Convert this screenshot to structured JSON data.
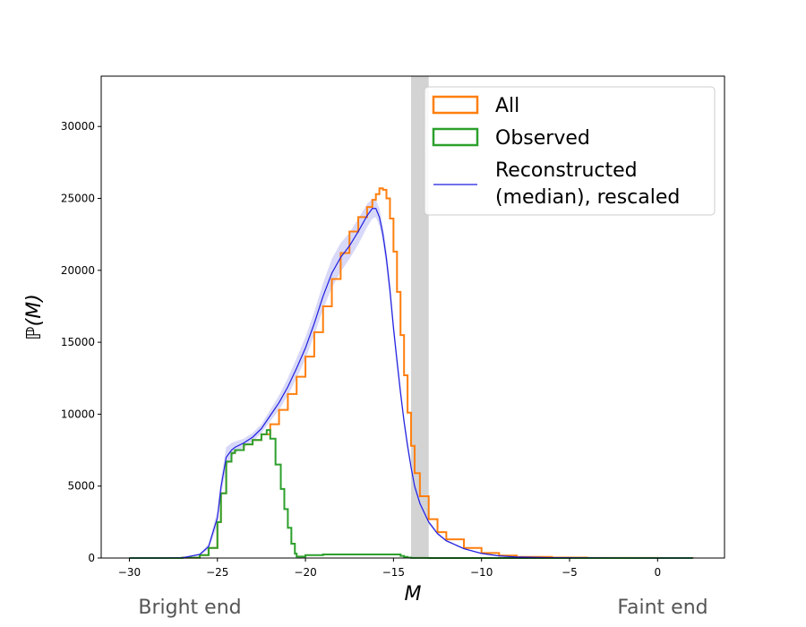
{
  "chart_data": {
    "type": "line",
    "xlabel": "M",
    "ylabel": "ℙ(M)",
    "xlim": [
      -31.6,
      3.8
    ],
    "ylim": [
      0,
      33500
    ],
    "xticks": [
      -30,
      -25,
      -20,
      -15,
      -10,
      -5,
      0
    ],
    "yticks": [
      0,
      5000,
      10000,
      15000,
      20000,
      25000,
      30000
    ],
    "shaded_region": {
      "x0": -14.0,
      "x1": -13.0,
      "color": "#d3d3d3"
    },
    "legend_position": "top-right",
    "annotations": [
      {
        "text": "Bright end",
        "position": "bottom-left"
      },
      {
        "text": "Faint end",
        "position": "bottom-right"
      }
    ],
    "series": [
      {
        "name": "All",
        "style": "step",
        "color": "#ff7f0e",
        "x": [
          -30,
          -28,
          -27,
          -26,
          -25.5,
          -25,
          -24.8,
          -24.5,
          -24.2,
          -24,
          -23.5,
          -23,
          -22.5,
          -22,
          -21.5,
          -21,
          -20.5,
          -20,
          -19.5,
          -19,
          -18.5,
          -18,
          -17.5,
          -17,
          -16.5,
          -16.2,
          -16,
          -15.8,
          -15.6,
          -15.4,
          -15.2,
          -15,
          -14.8,
          -14.6,
          -14.4,
          -14.2,
          -14,
          -13.8,
          -13.5,
          -13,
          -12.5,
          -12,
          -11,
          -10,
          -9,
          -8,
          -6,
          -4,
          -2,
          0,
          2
        ],
        "y": [
          0,
          0,
          20,
          200,
          700,
          2500,
          4500,
          6700,
          7300,
          7500,
          7900,
          8200,
          8600,
          9300,
          10300,
          11400,
          12600,
          14000,
          15700,
          17500,
          19400,
          21200,
          22700,
          23700,
          24400,
          24900,
          25300,
          25700,
          25600,
          25000,
          23600,
          21300,
          18500,
          15500,
          12700,
          10100,
          7800,
          5900,
          4300,
          2700,
          1800,
          1300,
          700,
          350,
          170,
          80,
          30,
          10,
          5,
          2,
          0
        ]
      },
      {
        "name": "Observed",
        "style": "step",
        "color": "#2ca02c",
        "x": [
          -30,
          -28,
          -27,
          -26,
          -25.5,
          -25,
          -24.8,
          -24.5,
          -24.2,
          -24,
          -23.5,
          -23,
          -22.5,
          -22.2,
          -22,
          -21.7,
          -21.4,
          -21.2,
          -21,
          -20.8,
          -20.6,
          -20.5,
          -20,
          -19,
          -18,
          -17,
          -16,
          -15,
          -14.6,
          -14.4,
          -14.2,
          -14,
          -13,
          -10,
          -5,
          0,
          2
        ],
        "y": [
          0,
          0,
          20,
          200,
          700,
          2500,
          4500,
          6700,
          7300,
          7500,
          7900,
          8200,
          8600,
          8900,
          8300,
          6500,
          4800,
          3400,
          2100,
          1000,
          300,
          100,
          200,
          250,
          250,
          250,
          250,
          250,
          150,
          80,
          30,
          5,
          0,
          0,
          0,
          0,
          0
        ]
      },
      {
        "name": "Reconstructed\n(median), rescaled",
        "style": "line",
        "color": "#1f1fe0",
        "band_color": "#c8c8f5",
        "x": [
          -30,
          -28,
          -27,
          -26,
          -25.5,
          -25,
          -24.8,
          -24.5,
          -24.2,
          -24,
          -23.5,
          -23,
          -22.5,
          -22,
          -21.5,
          -21,
          -20.5,
          -20,
          -19.5,
          -19,
          -18.5,
          -18,
          -17.5,
          -17,
          -16.5,
          -16.2,
          -16,
          -15.8,
          -15.6,
          -15.4,
          -15.2,
          -15,
          -14.8,
          -14.6,
          -14.4,
          -14.2,
          -14,
          -13.8,
          -13.5,
          -13,
          -12.5,
          -12,
          -11,
          -10,
          -9,
          -8,
          -6,
          -4,
          -2,
          0,
          2
        ],
        "y": [
          0,
          0,
          20,
          250,
          800,
          2800,
          4900,
          7000,
          7500,
          7700,
          8000,
          8400,
          9000,
          9900,
          10800,
          11900,
          13200,
          14600,
          16300,
          18200,
          19800,
          20900,
          21700,
          22700,
          23800,
          24300,
          24300,
          23700,
          22500,
          20800,
          18600,
          16000,
          13700,
          11500,
          9500,
          7800,
          6300,
          5000,
          3800,
          2500,
          1700,
          1200,
          650,
          320,
          150,
          70,
          25,
          8,
          3,
          1,
          0
        ],
        "band_halfwidth": [
          0,
          0,
          10,
          80,
          200,
          500,
          600,
          700,
          500,
          400,
          300,
          300,
          300,
          400,
          500,
          600,
          700,
          750,
          800,
          900,
          1000,
          1000,
          900,
          900,
          800,
          700,
          600,
          600,
          600,
          600,
          600,
          550,
          500,
          450,
          400,
          350,
          300,
          250,
          200,
          150,
          100,
          80,
          50,
          30,
          15,
          8,
          3,
          1,
          0,
          0,
          0
        ]
      }
    ]
  }
}
